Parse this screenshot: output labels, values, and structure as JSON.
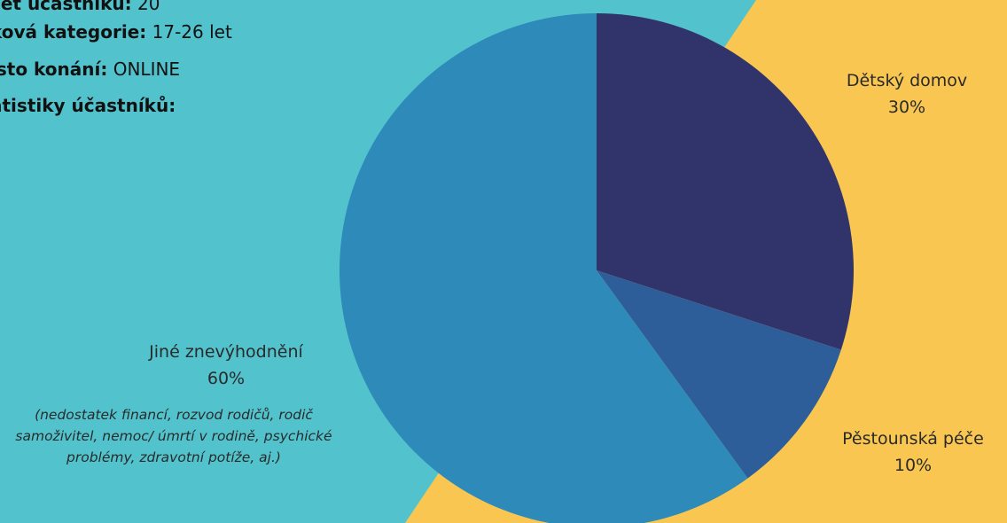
{
  "colors": {
    "background_left": "#52C3CD",
    "background_right": "#F9C751",
    "slice_detsky_domov": "#31336B",
    "slice_pestounska_pece": "#2D5E9A",
    "slice_jine": "#2D8AB9"
  },
  "info": [
    {
      "key": "čet účastníků:",
      "value": " 20"
    },
    {
      "key": "ková kategorie:",
      "value": " 17-26 let"
    },
    {
      "key": "ísto konání:",
      "value": " ONLINE"
    },
    {
      "key": "atistiky účastníků:",
      "value": ""
    }
  ],
  "chart_data": {
    "type": "pie",
    "slices": [
      {
        "label": "Dětský domov",
        "value": 30,
        "value_label": "30%",
        "color": "#31336B"
      },
      {
        "label": "Pěstounská péče",
        "value": 10,
        "value_label": "10%",
        "color": "#2D5E9A"
      },
      {
        "label": "Jiné znevýhodnění",
        "value": 60,
        "value_label": "60%",
        "color": "#2D8AB9"
      }
    ],
    "note": "(nedostatek financí, rozvod rodičů, rodič samoživitel, nemoc/ úmrtí v rodině, psychické problémy, zdravotní potíže, aj.)"
  }
}
